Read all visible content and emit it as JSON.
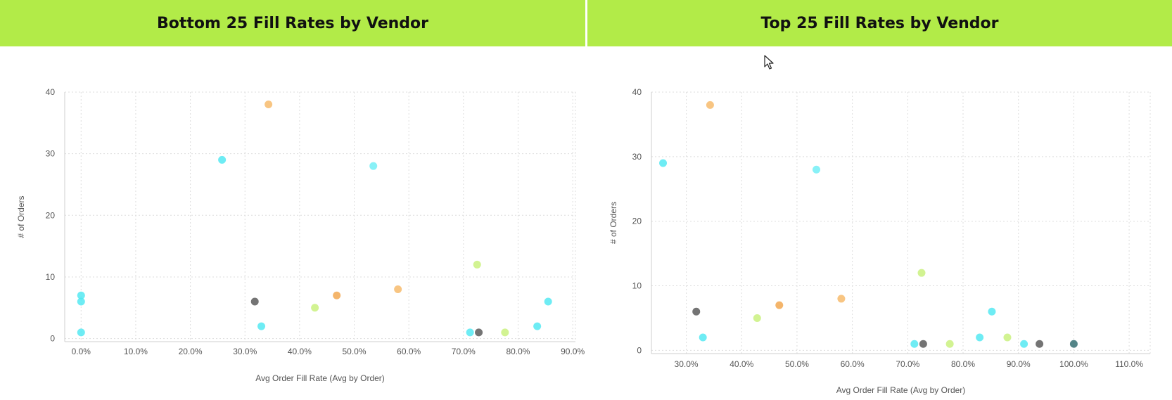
{
  "chart_data": [
    {
      "type": "scatter",
      "title": "Bottom 25 Fill Rates by Vendor",
      "xlabel": "Avg Order Fill Rate (Avg by Order)",
      "ylabel": "# of Orders",
      "xlim": [
        -0.03,
        0.905
      ],
      "ylim": [
        -0.5,
        40
      ],
      "xticks": [
        0.0,
        0.1,
        0.2,
        0.3,
        0.4,
        0.5,
        0.6,
        0.7,
        0.8,
        0.9
      ],
      "xtick_labels": [
        "0.0%",
        "10.0%",
        "20.0%",
        "30.0%",
        "40.0%",
        "50.0%",
        "60.0%",
        "70.0%",
        "80.0%",
        "90.0%"
      ],
      "yticks": [
        0,
        10,
        20,
        30,
        40
      ],
      "ytick_labels": [
        "0",
        "10",
        "20",
        "30",
        "40"
      ],
      "grid": true,
      "points": [
        {
          "x": 0.0,
          "y": 7,
          "color": "#4ee8f2"
        },
        {
          "x": 0.0,
          "y": 6,
          "color": "#4ee8f2"
        },
        {
          "x": 0.0,
          "y": 1,
          "color": "#4ee8f2"
        },
        {
          "x": 0.258,
          "y": 29,
          "color": "#4ee8f2"
        },
        {
          "x": 0.318,
          "y": 6,
          "color": "#555555"
        },
        {
          "x": 0.33,
          "y": 2,
          "color": "#4ee8f2"
        },
        {
          "x": 0.343,
          "y": 38,
          "color": "#f7b866"
        },
        {
          "x": 0.428,
          "y": 5,
          "color": "#c8f07a"
        },
        {
          "x": 0.468,
          "y": 7,
          "color": "#f2a54a"
        },
        {
          "x": 0.535,
          "y": 28,
          "color": "#6eeef5"
        },
        {
          "x": 0.58,
          "y": 8,
          "color": "#f7b866"
        },
        {
          "x": 0.712,
          "y": 1,
          "color": "#4ee8f2"
        },
        {
          "x": 0.725,
          "y": 12,
          "color": "#c8f07a"
        },
        {
          "x": 0.728,
          "y": 1,
          "color": "#555555"
        },
        {
          "x": 0.776,
          "y": 1,
          "color": "#c8f07a"
        },
        {
          "x": 0.835,
          "y": 2,
          "color": "#4ee8f2"
        },
        {
          "x": 0.855,
          "y": 6,
          "color": "#4ee8f2"
        }
      ]
    },
    {
      "type": "scatter",
      "title": "Top 25 Fill Rates by Vendor",
      "xlabel": "Avg Order Fill Rate (Avg by Order)",
      "ylabel": "# of Orders",
      "xlim": [
        0.237,
        1.138
      ],
      "ylim": [
        -0.5,
        40
      ],
      "xticks": [
        0.3,
        0.4,
        0.5,
        0.6,
        0.7,
        0.8,
        0.9,
        1.0,
        1.1
      ],
      "xtick_labels": [
        "30.0%",
        "40.0%",
        "50.0%",
        "60.0%",
        "70.0%",
        "80.0%",
        "90.0%",
        "100.0%",
        "110.0%"
      ],
      "yticks": [
        0,
        10,
        20,
        30,
        40
      ],
      "ytick_labels": [
        "0",
        "10",
        "20",
        "30",
        "40"
      ],
      "grid": true,
      "points": [
        {
          "x": 0.258,
          "y": 29,
          "color": "#4ee8f2"
        },
        {
          "x": 0.318,
          "y": 6,
          "color": "#555555"
        },
        {
          "x": 0.33,
          "y": 2,
          "color": "#4ee8f2"
        },
        {
          "x": 0.343,
          "y": 38,
          "color": "#f7b866"
        },
        {
          "x": 0.428,
          "y": 5,
          "color": "#c8f07a"
        },
        {
          "x": 0.468,
          "y": 7,
          "color": "#f2a54a"
        },
        {
          "x": 0.535,
          "y": 28,
          "color": "#6eeef5"
        },
        {
          "x": 0.58,
          "y": 8,
          "color": "#f7b866"
        },
        {
          "x": 0.712,
          "y": 1,
          "color": "#4ee8f2"
        },
        {
          "x": 0.725,
          "y": 12,
          "color": "#c8f07a"
        },
        {
          "x": 0.728,
          "y": 1,
          "color": "#555555"
        },
        {
          "x": 0.776,
          "y": 1,
          "color": "#c8f07a"
        },
        {
          "x": 0.83,
          "y": 2,
          "color": "#4ee8f2"
        },
        {
          "x": 0.852,
          "y": 6,
          "color": "#4ee8f2"
        },
        {
          "x": 0.88,
          "y": 2,
          "color": "#c8f07a"
        },
        {
          "x": 0.91,
          "y": 1,
          "color": "#4ee8f2"
        },
        {
          "x": 0.938,
          "y": 1,
          "color": "#555555"
        },
        {
          "x": 1.0,
          "y": 1,
          "color": "#2e6a6e"
        }
      ]
    }
  ],
  "theme": {
    "header_bg": "#b2eb48",
    "title_color": "#111111",
    "axis_color": "#cfcfcf",
    "grid_color": "#dddddd",
    "tick_text_color": "#555555"
  }
}
